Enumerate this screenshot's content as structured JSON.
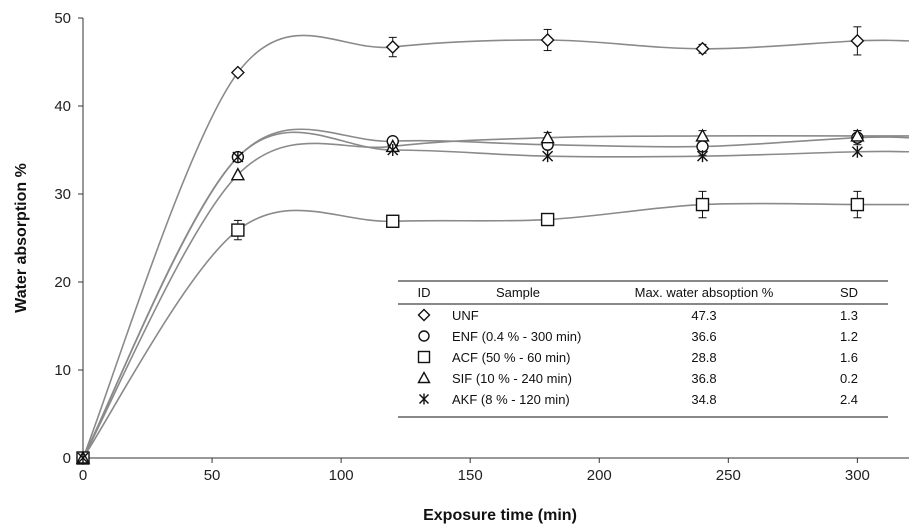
{
  "chart_data": {
    "type": "scatter",
    "xlabel": "Exposure time (min)",
    "ylabel": "Water absorption %",
    "xlim": [
      0,
      320
    ],
    "ylim": [
      0,
      50
    ],
    "x_ticks": [
      "0",
      "50",
      "100",
      "150",
      "200",
      "250",
      "300"
    ],
    "y_ticks": [
      "0",
      "10",
      "20",
      "30",
      "40",
      "50"
    ],
    "grid": false,
    "line_color": "#8a8a8a",
    "marker_color": "#111111",
    "series": [
      {
        "name": "UNF",
        "marker": "diamond",
        "x": [
          0,
          60,
          120,
          180,
          240,
          300
        ],
        "y": [
          0,
          43.8,
          46.7,
          47.5,
          46.5,
          47.4
        ],
        "err": [
          0,
          0,
          1.1,
          1.2,
          0.5,
          1.6
        ]
      },
      {
        "name": "ENF",
        "marker": "circle",
        "x": [
          0,
          60,
          120,
          180,
          240,
          300
        ],
        "y": [
          0,
          34.2,
          36.0,
          35.6,
          35.4,
          36.4
        ],
        "err": [
          0,
          0,
          0,
          0,
          1.0,
          0.8
        ]
      },
      {
        "name": "ACF",
        "marker": "square",
        "x": [
          0,
          60,
          120,
          180,
          240,
          300
        ],
        "y": [
          0,
          25.9,
          26.9,
          27.1,
          28.8,
          28.8
        ],
        "err": [
          0,
          1.1,
          0,
          0,
          1.5,
          1.5
        ]
      },
      {
        "name": "SIF",
        "marker": "triangle",
        "x": [
          0,
          60,
          120,
          180,
          240,
          300
        ],
        "y": [
          0,
          32.2,
          35.4,
          36.4,
          36.6,
          36.6
        ],
        "err": [
          0,
          0,
          0,
          0.6,
          0.6,
          0.6
        ]
      },
      {
        "name": "AKF",
        "marker": "star",
        "x": [
          0,
          60,
          120,
          180,
          240,
          300
        ],
        "y": [
          0,
          34.2,
          35.0,
          34.3,
          34.3,
          34.8
        ],
        "err": [
          0,
          0.5,
          0,
          0,
          0,
          0
        ]
      }
    ],
    "table": {
      "headers": [
        "ID",
        "Sample",
        "Max. water absoption %",
        "SD"
      ],
      "rows": [
        {
          "marker": "diamond",
          "sample": "UNF",
          "max": "47.3",
          "sd": "1.3"
        },
        {
          "marker": "circle",
          "sample": "ENF (0.4 % - 300 min)",
          "max": "36.6",
          "sd": "1.2"
        },
        {
          "marker": "square",
          "sample": "ACF (50 % - 60 min)",
          "max": "28.8",
          "sd": "1.6"
        },
        {
          "marker": "triangle",
          "sample": "SIF (10 % - 240 min)",
          "max": "36.8",
          "sd": "0.2"
        },
        {
          "marker": "star",
          "sample": "AKF (8 % - 120 min)",
          "max": "34.8",
          "sd": "2.4"
        }
      ]
    }
  }
}
